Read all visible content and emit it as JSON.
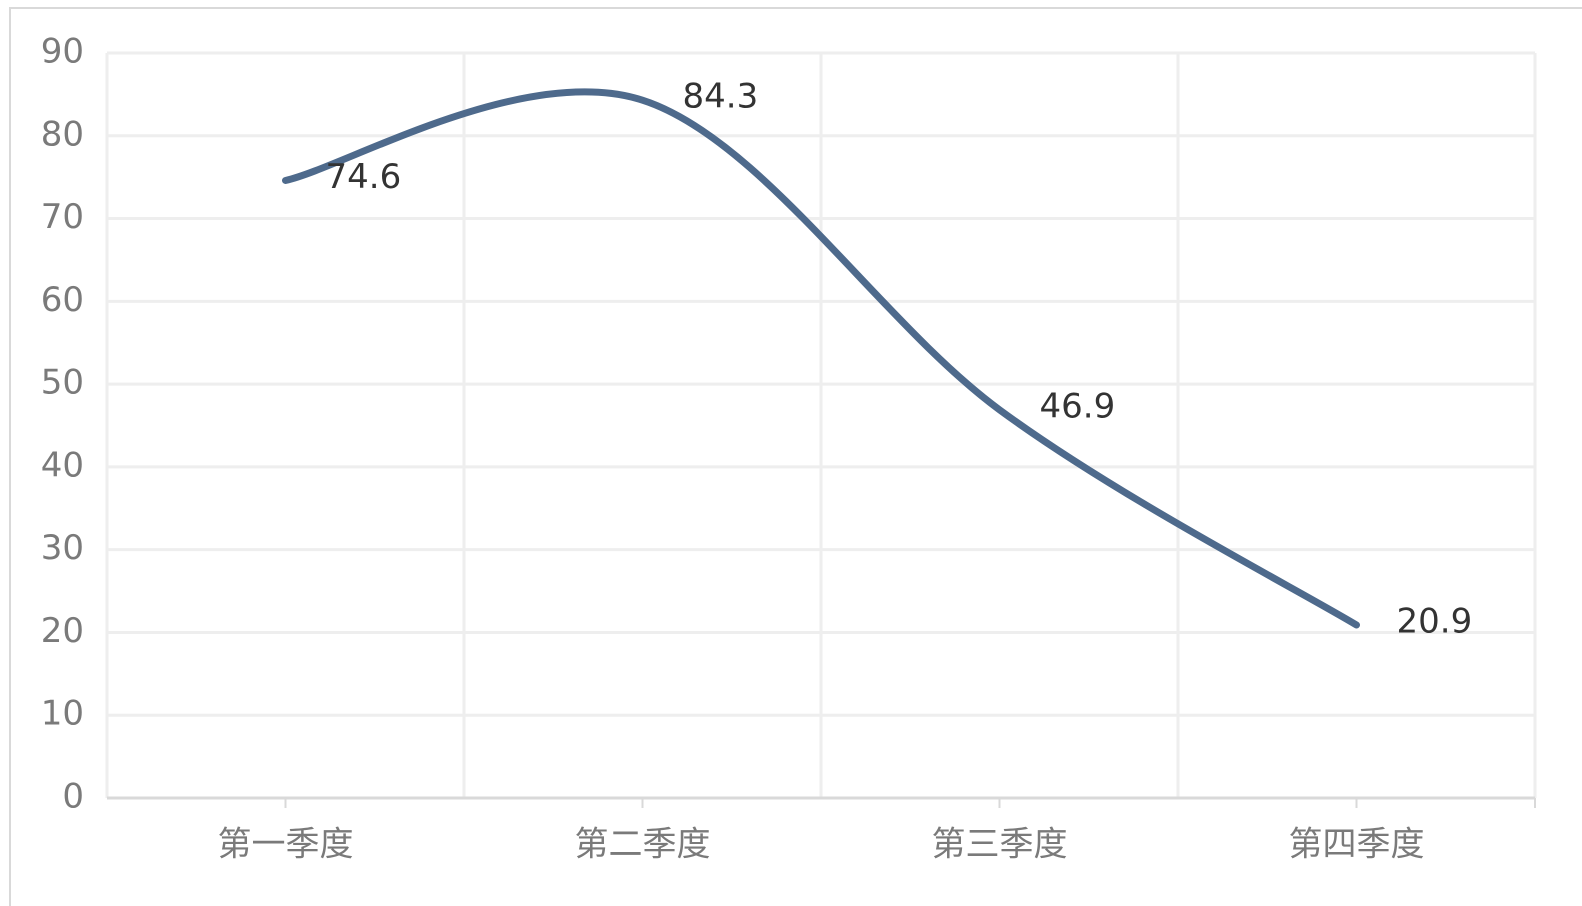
{
  "chart_data": {
    "type": "line",
    "categories": [
      "第一季度",
      "第二季度",
      "第三季度",
      "第四季度"
    ],
    "series": [
      {
        "color": "#4e6a8c",
        "values": [
          74.6,
          84.3,
          46.9,
          20.9
        ]
      }
    ],
    "ylim": [
      0,
      90
    ],
    "yticks": [
      0,
      10,
      20,
      30,
      40,
      50,
      60,
      70,
      80,
      90
    ],
    "grid": true,
    "smooth": true,
    "data_labels": true
  }
}
